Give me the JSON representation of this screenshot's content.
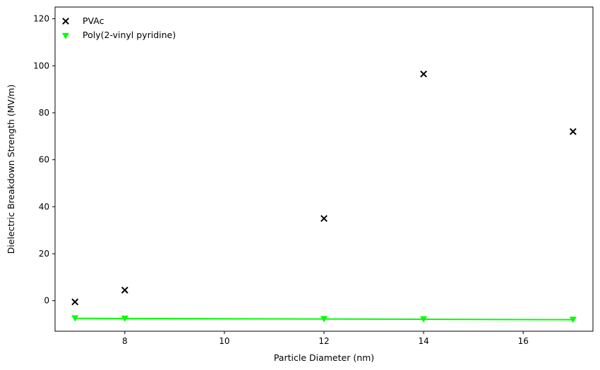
{
  "chart_data": {
    "type": "scatter",
    "title": "",
    "xlabel": "Particle Diameter (nm)",
    "ylabel": "Dielectric Breakdown Strength (MV/m)",
    "xlim": [
      6.6,
      17.4
    ],
    "ylim": [
      -13,
      125
    ],
    "xticks": [
      8,
      10,
      12,
      14,
      16
    ],
    "yticks": [
      0,
      20,
      40,
      60,
      80,
      100,
      120
    ],
    "grid": false,
    "legend_position": "top-left",
    "series": [
      {
        "name": "PVAc",
        "marker": "x",
        "color": "#000000",
        "line": false,
        "x": [
          7,
          8,
          12,
          14,
          17
        ],
        "y": [
          -0.5,
          4.5,
          35,
          96.5,
          72
        ]
      },
      {
        "name": "Poly(2-vinyl pyridine)",
        "marker": "triangle-down",
        "color": "#00ff00",
        "line": true,
        "x": [
          7,
          8,
          12,
          14,
          17
        ],
        "y": [
          -7.5,
          -7.6,
          -7.8,
          -7.9,
          -8.1
        ]
      }
    ]
  }
}
